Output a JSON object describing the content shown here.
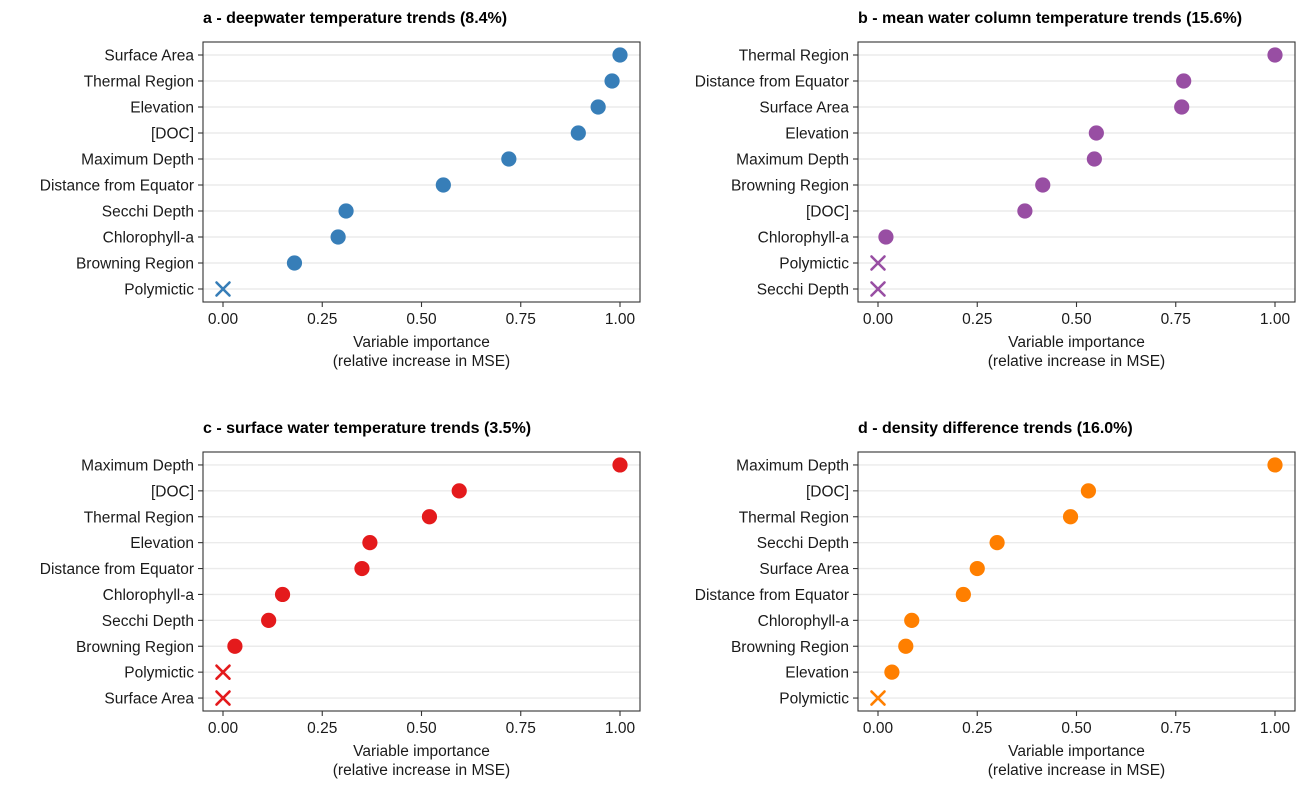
{
  "chart_data": [
    {
      "type": "scatter",
      "title": "a - deepwater temperature trends (8.4%)",
      "xlabel": "Variable importance",
      "xlabel_sub": "(relative increase in MSE)",
      "xlim": [
        0,
        1
      ],
      "xticks": [
        "0.00",
        "0.25",
        "0.50",
        "0.75",
        "1.00"
      ],
      "color": "#377EB8",
      "categories": [
        "Surface Area",
        "Thermal Region",
        "Elevation",
        "[DOC]",
        "Maximum Depth",
        "Distance from Equator",
        "Secchi Depth",
        "Chlorophyll-a",
        "Browning Region",
        "Polymictic"
      ],
      "values": [
        1.0,
        0.98,
        0.945,
        0.895,
        0.72,
        0.555,
        0.31,
        0.29,
        0.18,
        0.0
      ],
      "markers": [
        "circle",
        "circle",
        "circle",
        "circle",
        "circle",
        "circle",
        "circle",
        "circle",
        "circle",
        "x"
      ]
    },
    {
      "type": "scatter",
      "title": "b - mean water column temperature trends (15.6%)",
      "xlabel": "Variable importance",
      "xlabel_sub": "(relative increase in MSE)",
      "xlim": [
        0,
        1
      ],
      "xticks": [
        "0.00",
        "0.25",
        "0.50",
        "0.75",
        "1.00"
      ],
      "color": "#984EA3",
      "categories": [
        "Thermal Region",
        "Distance from Equator",
        "Surface Area",
        "Elevation",
        "Maximum Depth",
        "Browning Region",
        "[DOC]",
        "Chlorophyll-a",
        "Polymictic",
        "Secchi Depth"
      ],
      "values": [
        1.0,
        0.77,
        0.765,
        0.55,
        0.545,
        0.415,
        0.37,
        0.02,
        0.0,
        0.0
      ],
      "markers": [
        "circle",
        "circle",
        "circle",
        "circle",
        "circle",
        "circle",
        "circle",
        "circle",
        "x",
        "x"
      ]
    },
    {
      "type": "scatter",
      "title": "c - surface water temperature trends (3.5%)",
      "xlabel": "Variable importance",
      "xlabel_sub": "(relative increase in MSE)",
      "xlim": [
        0,
        1
      ],
      "xticks": [
        "0.00",
        "0.25",
        "0.50",
        "0.75",
        "1.00"
      ],
      "color": "#E41A1C",
      "categories": [
        "Maximum Depth",
        "[DOC]",
        "Thermal Region",
        "Elevation",
        "Distance from Equator",
        "Chlorophyll-a",
        "Secchi Depth",
        "Browning Region",
        "Polymictic",
        "Surface Area"
      ],
      "values": [
        1.0,
        0.595,
        0.52,
        0.37,
        0.35,
        0.15,
        0.115,
        0.03,
        0.0,
        0.0
      ],
      "markers": [
        "circle",
        "circle",
        "circle",
        "circle",
        "circle",
        "circle",
        "circle",
        "circle",
        "x",
        "x"
      ]
    },
    {
      "type": "scatter",
      "title": "d - density difference trends (16.0%)",
      "xlabel": "Variable importance",
      "xlabel_sub": "(relative increase in MSE)",
      "xlim": [
        0,
        1
      ],
      "xticks": [
        "0.00",
        "0.25",
        "0.50",
        "0.75",
        "1.00"
      ],
      "color": "#FF7F00",
      "categories": [
        "Maximum Depth",
        "[DOC]",
        "Thermal Region",
        "Secchi Depth",
        "Surface Area",
        "Distance from Equator",
        "Chlorophyll-a",
        "Browning Region",
        "Elevation",
        "Polymictic"
      ],
      "values": [
        1.0,
        0.53,
        0.485,
        0.3,
        0.25,
        0.215,
        0.085,
        0.07,
        0.035,
        0.0
      ],
      "markers": [
        "circle",
        "circle",
        "circle",
        "circle",
        "circle",
        "circle",
        "circle",
        "circle",
        "circle",
        "x"
      ]
    }
  ]
}
